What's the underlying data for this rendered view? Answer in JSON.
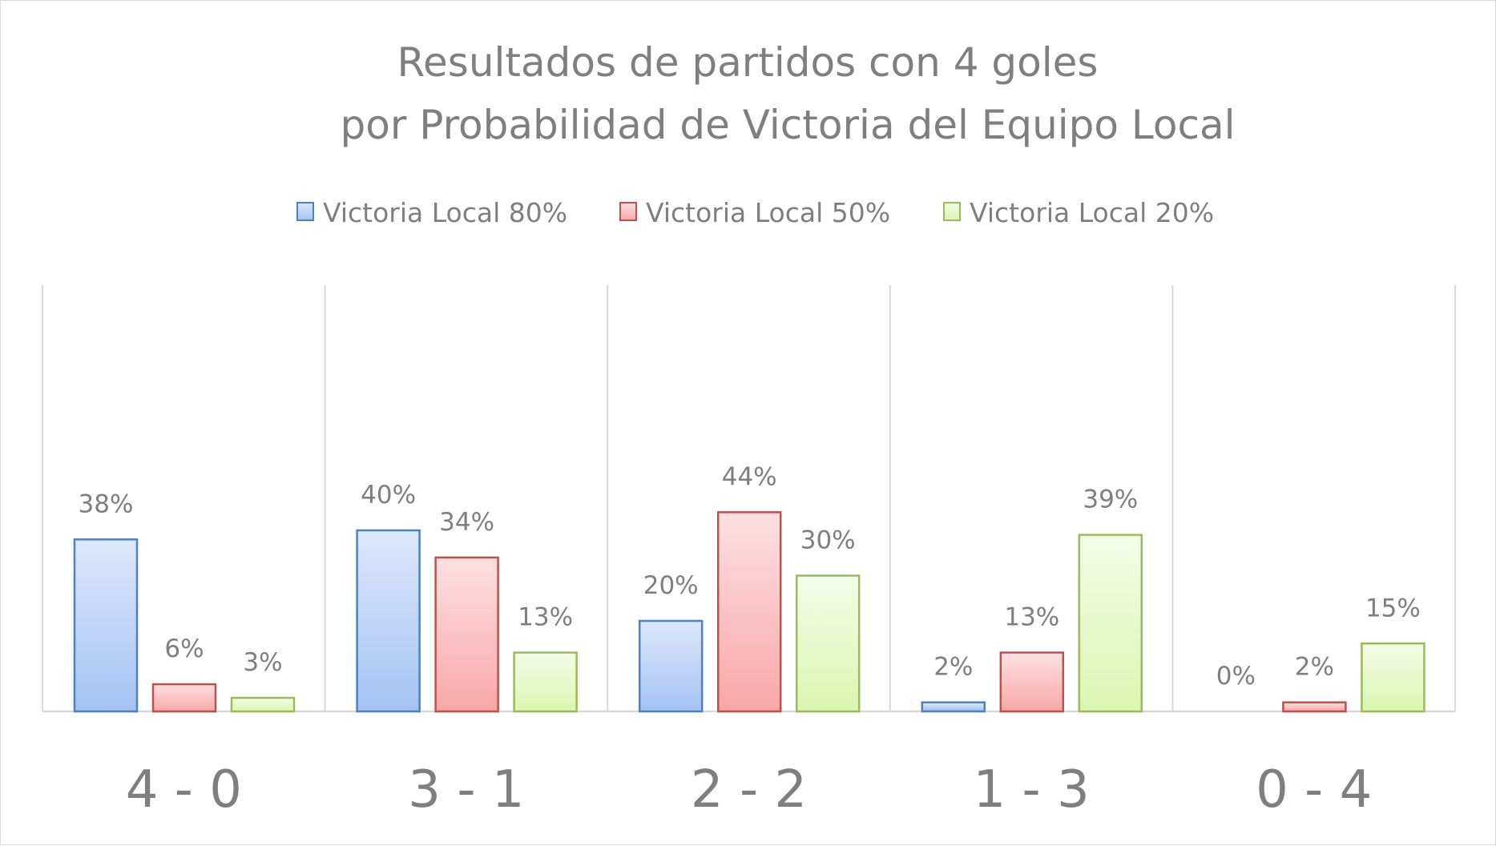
{
  "chart_data": {
    "type": "bar",
    "title": "Resultados de partidos con 4 goles",
    "subtitle": "por Probabilidad de Victoria del Equipo Local",
    "categories": [
      "4 - 0",
      "3 - 1",
      "2 - 2",
      "1 - 3",
      "0 - 4"
    ],
    "series": [
      {
        "name": "Victoria Local 80%",
        "values": [
          38,
          40,
          20,
          2,
          0
        ],
        "labels": [
          "38%",
          "40%",
          "20%",
          "2%",
          "0%"
        ],
        "color": "#4f81bd",
        "fill_top": "#dce8fb",
        "fill_bottom": "#a4c2f4"
      },
      {
        "name": "Victoria Local 50%",
        "values": [
          6,
          34,
          44,
          13,
          2
        ],
        "labels": [
          "6%",
          "34%",
          "44%",
          "13%",
          "2%"
        ],
        "color": "#c0504d",
        "fill_top": "#fde0e0",
        "fill_bottom": "#f8a7a7"
      },
      {
        "name": "Victoria Local 20%",
        "values": [
          3,
          13,
          30,
          39,
          15
        ],
        "labels": [
          "3%",
          "13%",
          "30%",
          "39%",
          "15%"
        ],
        "color": "#9bbb59",
        "fill_top": "#f4fce8",
        "fill_bottom": "#daf5b0"
      }
    ],
    "ylim": [
      0,
      90
    ],
    "value_format": "percent",
    "grid": "vertical category separators",
    "legend": "top-center",
    "axis_color": "#d9d9d9",
    "text_color": "#7f7f7f"
  }
}
